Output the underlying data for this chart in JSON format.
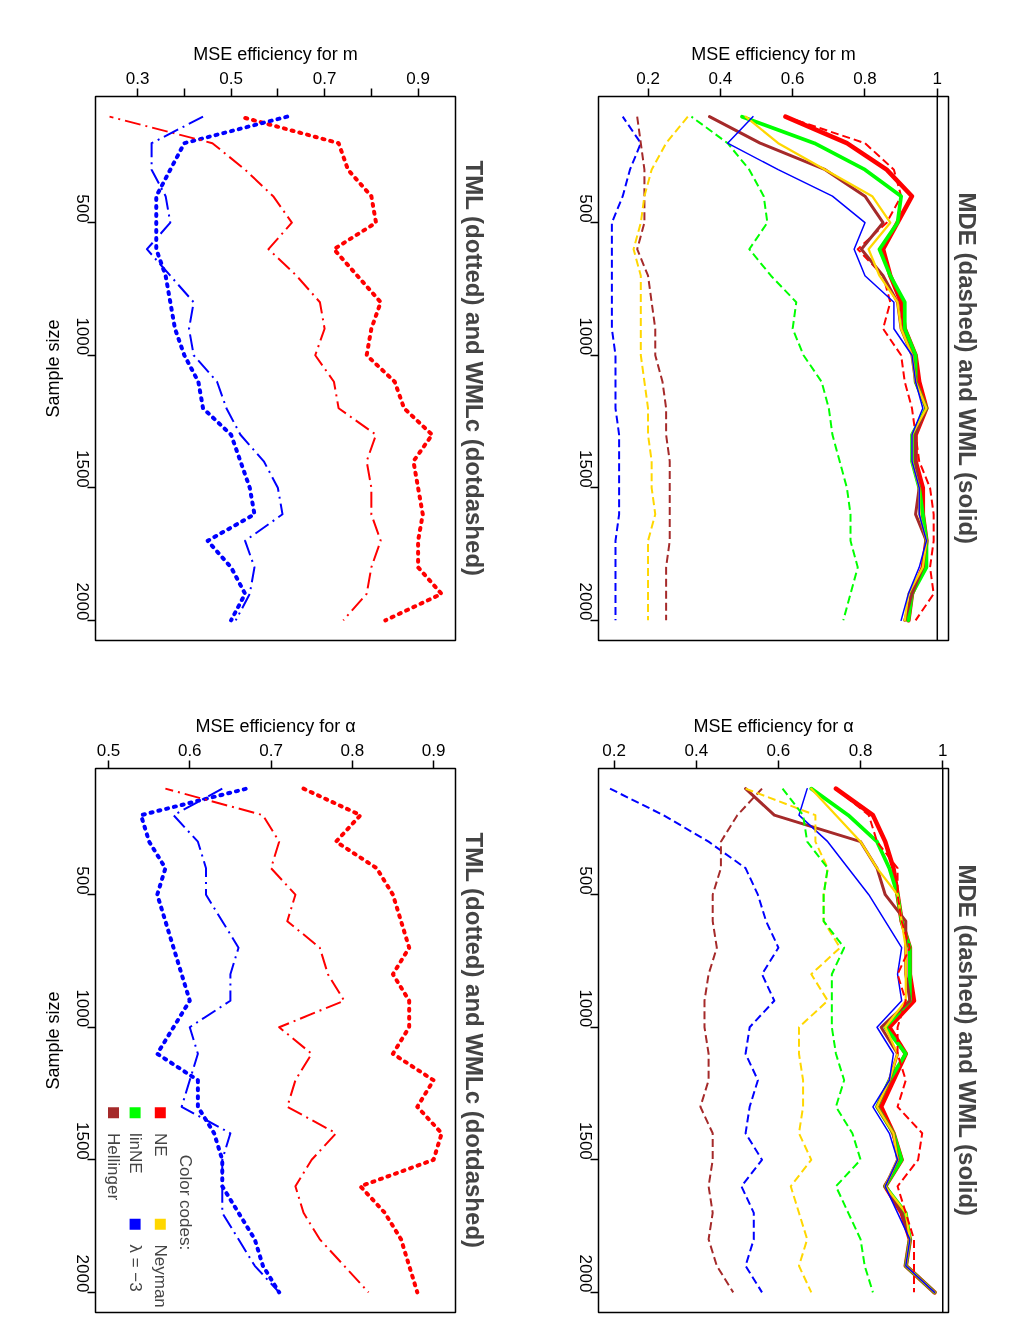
{
  "chart_data": [
    {
      "type": "line",
      "title": "TML (dotted) and WMLc (dotdashed)",
      "orientation": "horizontal",
      "xlabel": "MSE efficiency for m",
      "ylabel": "Sample size",
      "x": [
        100,
        200,
        300,
        400,
        500,
        600,
        700,
        800,
        900,
        1000,
        1100,
        1200,
        1300,
        1400,
        1500,
        1600,
        1700,
        1800,
        1900,
        2000
      ],
      "xlim": [
        0.21,
        0.98
      ],
      "xticks": [
        0.3,
        {
          "value": 0.4,
          "label": null
        },
        0.5,
        {
          "value": 0.6,
          "label": null
        },
        0.7,
        {
          "value": 0.8,
          "label": null
        },
        0.9
      ],
      "ylim": [
        2076,
        24
      ],
      "yticks": [
        500,
        1000,
        1500,
        2000
      ],
      "series": [
        {
          "color": "#ff0000",
          "line_style": "dotted",
          "values": [
            0.52,
            0.73,
            0.75,
            0.8,
            0.81,
            0.72,
            0.77,
            0.82,
            0.8,
            0.79,
            0.85,
            0.87,
            0.93,
            0.89,
            0.9,
            0.91,
            0.9,
            0.9,
            0.95,
            0.83
          ]
        },
        {
          "color": "#0000ff",
          "line_style": "dotted",
          "values": [
            0.62,
            0.4,
            0.37,
            0.34,
            0.34,
            0.34,
            0.36,
            0.37,
            0.38,
            0.4,
            0.43,
            0.44,
            0.5,
            0.52,
            0.54,
            0.55,
            0.45,
            0.5,
            0.53,
            0.5
          ]
        },
        {
          "color": "#ff0000",
          "line_style": "dashdot",
          "values": [
            0.24,
            0.46,
            0.53,
            0.59,
            0.63,
            0.58,
            0.64,
            0.69,
            0.7,
            0.68,
            0.72,
            0.73,
            0.81,
            0.79,
            0.8,
            0.8,
            0.82,
            0.8,
            0.79,
            0.74
          ]
        },
        {
          "color": "#0000ff",
          "line_style": "dashdot",
          "values": [
            0.44,
            0.33,
            0.33,
            0.36,
            0.37,
            0.32,
            0.37,
            0.42,
            0.41,
            0.42,
            0.47,
            0.49,
            0.52,
            0.57,
            0.6,
            0.61,
            0.53,
            0.55,
            0.54,
            0.51
          ]
        }
      ]
    },
    {
      "type": "line",
      "title": "MDE (dashed) and WML (solid)",
      "orientation": "horizontal",
      "xlabel": "MSE efficiency for m",
      "x": [
        100,
        200,
        300,
        400,
        500,
        600,
        700,
        800,
        900,
        1000,
        1100,
        1200,
        1300,
        1400,
        1500,
        1600,
        1700,
        1800,
        1900,
        2000
      ],
      "xlim": [
        0.063,
        1.031
      ],
      "xticks": [
        0.2,
        0.4,
        0.6,
        0.8,
        1.0
      ],
      "ylim": [
        2076,
        24
      ],
      "yticks": [
        500,
        1000,
        1500,
        2000
      ],
      "ref_lines": [
        {
          "axis": "x",
          "value": 1.0,
          "color": "#000000"
        }
      ],
      "series": [
        {
          "color": "#0000ff",
          "line_style": "dashed",
          "values": [
            0.13,
            0.18,
            0.15,
            0.13,
            0.1,
            0.1,
            0.1,
            0.1,
            0.1,
            0.11,
            0.11,
            0.11,
            0.12,
            0.12,
            0.12,
            0.12,
            0.11,
            0.11,
            0.11,
            0.11
          ]
        },
        {
          "color": "#a52a2a",
          "line_style": "dashed",
          "values": [
            0.17,
            0.18,
            0.19,
            0.19,
            0.19,
            0.17,
            0.2,
            0.21,
            0.22,
            0.22,
            0.24,
            0.25,
            0.25,
            0.26,
            0.26,
            0.26,
            0.26,
            0.25,
            0.25,
            0.25
          ]
        },
        {
          "color": "#ffd700",
          "line_style": "dashed",
          "values": [
            0.31,
            0.25,
            0.21,
            0.19,
            0.18,
            0.16,
            0.18,
            0.18,
            0.18,
            0.18,
            0.19,
            0.2,
            0.2,
            0.21,
            0.21,
            0.22,
            0.2,
            0.2,
            0.2,
            0.2
          ]
        },
        {
          "color": "#00ff00",
          "line_style": "dashed",
          "values": [
            0.32,
            0.42,
            0.48,
            0.52,
            0.53,
            0.48,
            0.54,
            0.61,
            0.6,
            0.63,
            0.68,
            0.7,
            0.71,
            0.73,
            0.75,
            0.76,
            0.76,
            0.78,
            0.76,
            0.74
          ]
        },
        {
          "color": "#ff0000",
          "line_style": "dashed",
          "values": [
            0.58,
            0.8,
            0.88,
            0.9,
            0.86,
            0.78,
            0.85,
            0.87,
            0.85,
            0.9,
            0.91,
            0.93,
            0.94,
            0.95,
            0.98,
            0.99,
            0.99,
            0.98,
            0.99,
            0.94
          ]
        },
        {
          "color": "#ff0000",
          "line_style": "solid",
          "values": [
            0.58,
            0.75,
            0.86,
            0.93,
            0.89,
            0.85,
            0.87,
            0.9,
            0.91,
            0.94,
            0.95,
            0.97,
            0.94,
            0.94,
            0.96,
            0.96,
            0.97,
            0.96,
            0.93,
            0.92
          ]
        },
        {
          "color": "#00ff00",
          "line_style": "solid",
          "values": [
            0.46,
            0.66,
            0.8,
            0.9,
            0.89,
            0.84,
            0.87,
            0.91,
            0.91,
            0.94,
            0.94,
            0.97,
            0.93,
            0.93,
            0.95,
            0.96,
            0.97,
            0.97,
            0.93,
            0.92
          ]
        },
        {
          "color": "#a52a2a",
          "line_style": "solid",
          "values": [
            0.37,
            0.51,
            0.69,
            0.8,
            0.85,
            0.79,
            0.85,
            0.89,
            0.9,
            0.93,
            0.94,
            0.97,
            0.94,
            0.94,
            0.95,
            0.94,
            0.97,
            0.96,
            0.93,
            0.91
          ]
        },
        {
          "color": "#ffd700",
          "line_style": "solid",
          "values": [
            0.47,
            0.56,
            0.69,
            0.82,
            0.87,
            0.81,
            0.84,
            0.89,
            0.9,
            0.93,
            0.94,
            0.97,
            0.93,
            0.93,
            0.95,
            0.95,
            0.97,
            0.96,
            0.92,
            0.91
          ]
        },
        {
          "color": "#0000ff",
          "line_style": "solid",
          "values": [
            0.49,
            0.42,
            0.56,
            0.71,
            0.8,
            0.77,
            0.8,
            0.88,
            0.88,
            0.93,
            0.94,
            0.96,
            0.93,
            0.93,
            0.95,
            0.95,
            0.97,
            0.95,
            0.92,
            0.9
          ]
        }
      ]
    },
    {
      "type": "line",
      "title": "TML (dotted) and WMLc (dotdashed)",
      "orientation": "horizontal",
      "xlabel": "MSE efficiency for α",
      "ylabel": "Sample size",
      "x": [
        100,
        200,
        300,
        400,
        500,
        600,
        700,
        800,
        900,
        1000,
        1100,
        1200,
        1300,
        1400,
        1500,
        1600,
        1700,
        1800,
        1900,
        2000
      ],
      "xlim": [
        0.484,
        0.927
      ],
      "xticks": [
        0.5,
        0.6,
        0.7,
        0.8,
        0.9
      ],
      "ylim": [
        2076,
        24
      ],
      "yticks": [
        500,
        1000,
        1500,
        2000
      ],
      "legend": "bottom left",
      "legend_title": "Color codes:",
      "series": [
        {
          "color": "#ff0000",
          "line_style": "dotted",
          "values": [
            0.74,
            0.81,
            0.78,
            0.83,
            0.85,
            0.86,
            0.87,
            0.85,
            0.87,
            0.87,
            0.85,
            0.9,
            0.88,
            0.91,
            0.9,
            0.81,
            0.84,
            0.86,
            0.87,
            0.88
          ]
        },
        {
          "color": "#0000ff",
          "line_style": "dotted",
          "values": [
            0.67,
            0.54,
            0.55,
            0.57,
            0.56,
            0.57,
            0.58,
            0.59,
            0.6,
            0.58,
            0.56,
            0.61,
            0.61,
            0.63,
            0.64,
            0.64,
            0.66,
            0.68,
            0.69,
            0.71
          ]
        },
        {
          "color": "#ff0000",
          "line_style": "dashdot",
          "values": [
            0.57,
            0.69,
            0.71,
            0.7,
            0.73,
            0.72,
            0.76,
            0.77,
            0.79,
            0.71,
            0.75,
            0.73,
            0.72,
            0.78,
            0.75,
            0.73,
            0.74,
            0.76,
            0.79,
            0.82
          ]
        },
        {
          "color": "#0000ff",
          "line_style": "dashdot",
          "values": [
            0.64,
            0.58,
            0.61,
            0.62,
            0.62,
            0.64,
            0.66,
            0.65,
            0.65,
            0.6,
            0.61,
            0.6,
            0.59,
            0.65,
            0.64,
            0.64,
            0.64,
            0.66,
            0.68,
            0.71
          ]
        },
        {
          "name": "NE",
          "color": "#ff0000",
          "line_style": "solid",
          "values": [
            null,
            null,
            null,
            null,
            null,
            null,
            null,
            null,
            null,
            null,
            null,
            null,
            null,
            null,
            null,
            null,
            null,
            null,
            null,
            null
          ]
        },
        {
          "name": "linNE",
          "color": "#00ff00",
          "line_style": "solid",
          "values": [
            null,
            null,
            null,
            null,
            null,
            null,
            null,
            null,
            null,
            null,
            null,
            null,
            null,
            null,
            null,
            null,
            null,
            null,
            null,
            null
          ]
        },
        {
          "name": "Hellinger",
          "color": "#a52a2a",
          "line_style": "solid",
          "values": [
            null,
            null,
            null,
            null,
            null,
            null,
            null,
            null,
            null,
            null,
            null,
            null,
            null,
            null,
            null,
            null,
            null,
            null,
            null,
            null
          ]
        },
        {
          "name": "Neyman",
          "color": "#ffd700",
          "line_style": "solid",
          "values": [
            null,
            null,
            null,
            null,
            null,
            null,
            null,
            null,
            null,
            null,
            null,
            null,
            null,
            null,
            null,
            null,
            null,
            null,
            null,
            null
          ]
        },
        {
          "name": "λ = −3",
          "color": "#0000ff",
          "line_style": "solid",
          "values": [
            null,
            null,
            null,
            null,
            null,
            null,
            null,
            null,
            null,
            null,
            null,
            null,
            null,
            null,
            null,
            null,
            null,
            null,
            null,
            null
          ]
        }
      ]
    },
    {
      "type": "line",
      "title": "MDE (dashed) and WML (solid)",
      "orientation": "horizontal",
      "xlabel": "MSE efficiency for α",
      "x": [
        100,
        200,
        300,
        400,
        500,
        600,
        700,
        800,
        900,
        1000,
        1100,
        1200,
        1300,
        1400,
        1500,
        1600,
        1700,
        1800,
        1900,
        2000
      ],
      "xlim": [
        0.162,
        1.014
      ],
      "xticks": [
        0.2,
        0.4,
        0.6,
        0.8,
        1.0
      ],
      "ylim": [
        2076,
        24
      ],
      "yticks": [
        500,
        1000,
        1500,
        2000
      ],
      "ref_lines": [
        {
          "axis": "x",
          "value": 1.0,
          "color": "#000000"
        }
      ],
      "series": [
        {
          "color": "#ff0000",
          "line_style": "solid",
          "values": [
            0.74,
            0.83,
            0.86,
            0.88,
            0.89,
            0.9,
            0.92,
            0.92,
            0.93,
            0.87,
            0.91,
            0.88,
            0.85,
            0.88,
            0.9,
            0.86,
            0.9,
            0.92,
            0.91,
            0.98
          ]
        },
        {
          "color": "#00ff00",
          "line_style": "solid",
          "values": [
            0.68,
            0.77,
            0.84,
            0.87,
            0.89,
            0.9,
            0.92,
            0.92,
            0.92,
            0.86,
            0.91,
            0.87,
            0.84,
            0.88,
            0.9,
            0.86,
            0.91,
            0.92,
            0.91,
            0.98
          ]
        },
        {
          "color": "#a52a2a",
          "line_style": "solid",
          "values": [
            0.52,
            0.59,
            0.8,
            0.84,
            0.86,
            0.91,
            0.91,
            0.91,
            0.92,
            0.85,
            0.89,
            0.87,
            0.84,
            0.88,
            0.89,
            0.86,
            0.9,
            0.92,
            0.91,
            0.98
          ]
        },
        {
          "color": "#ffd700",
          "line_style": "solid",
          "values": [
            0.68,
            0.74,
            0.8,
            0.84,
            0.89,
            0.9,
            0.91,
            0.91,
            0.91,
            0.86,
            0.89,
            0.87,
            0.84,
            0.88,
            0.89,
            0.86,
            0.91,
            0.92,
            0.91,
            0.98
          ]
        },
        {
          "color": "#0000ff",
          "line_style": "solid",
          "values": [
            0.67,
            0.65,
            0.72,
            0.77,
            0.82,
            0.86,
            0.9,
            0.89,
            0.9,
            0.84,
            0.88,
            0.87,
            0.83,
            0.87,
            0.89,
            0.86,
            0.89,
            0.92,
            0.91,
            0.98
          ]
        },
        {
          "color": "#0000ff",
          "line_style": "dashed",
          "values": [
            0.19,
            0.32,
            0.43,
            0.52,
            0.55,
            0.57,
            0.6,
            0.56,
            0.59,
            0.53,
            0.52,
            0.55,
            0.53,
            0.52,
            0.56,
            0.51,
            0.54,
            0.54,
            0.52,
            0.56
          ]
        },
        {
          "color": "#a52a2a",
          "line_style": "dashed",
          "values": [
            0.56,
            0.5,
            0.46,
            0.46,
            0.44,
            0.44,
            0.45,
            0.43,
            0.42,
            0.42,
            0.43,
            0.43,
            0.41,
            0.44,
            0.44,
            0.43,
            0.44,
            0.43,
            0.45,
            0.49
          ]
        },
        {
          "color": "#ffd700",
          "line_style": "dashed",
          "values": [
            0.52,
            0.69,
            0.69,
            0.72,
            0.71,
            0.71,
            0.75,
            0.68,
            0.72,
            0.65,
            0.65,
            0.66,
            0.66,
            0.65,
            0.68,
            0.63,
            0.65,
            0.67,
            0.65,
            0.68
          ]
        },
        {
          "color": "#00ff00",
          "line_style": "dashed",
          "values": [
            0.61,
            0.66,
            0.67,
            0.72,
            0.71,
            0.71,
            0.76,
            0.73,
            0.73,
            0.73,
            0.74,
            0.76,
            0.74,
            0.78,
            0.8,
            0.74,
            0.77,
            0.8,
            0.81,
            0.83
          ]
        },
        {
          "color": "#ff0000",
          "line_style": "dashed",
          "values": [
            0.74,
            0.82,
            0.84,
            0.89,
            0.89,
            0.9,
            0.92,
            0.89,
            0.91,
            0.89,
            0.89,
            0.91,
            0.89,
            0.95,
            0.94,
            0.89,
            0.91,
            0.93,
            0.93,
            0.93
          ]
        }
      ]
    }
  ]
}
